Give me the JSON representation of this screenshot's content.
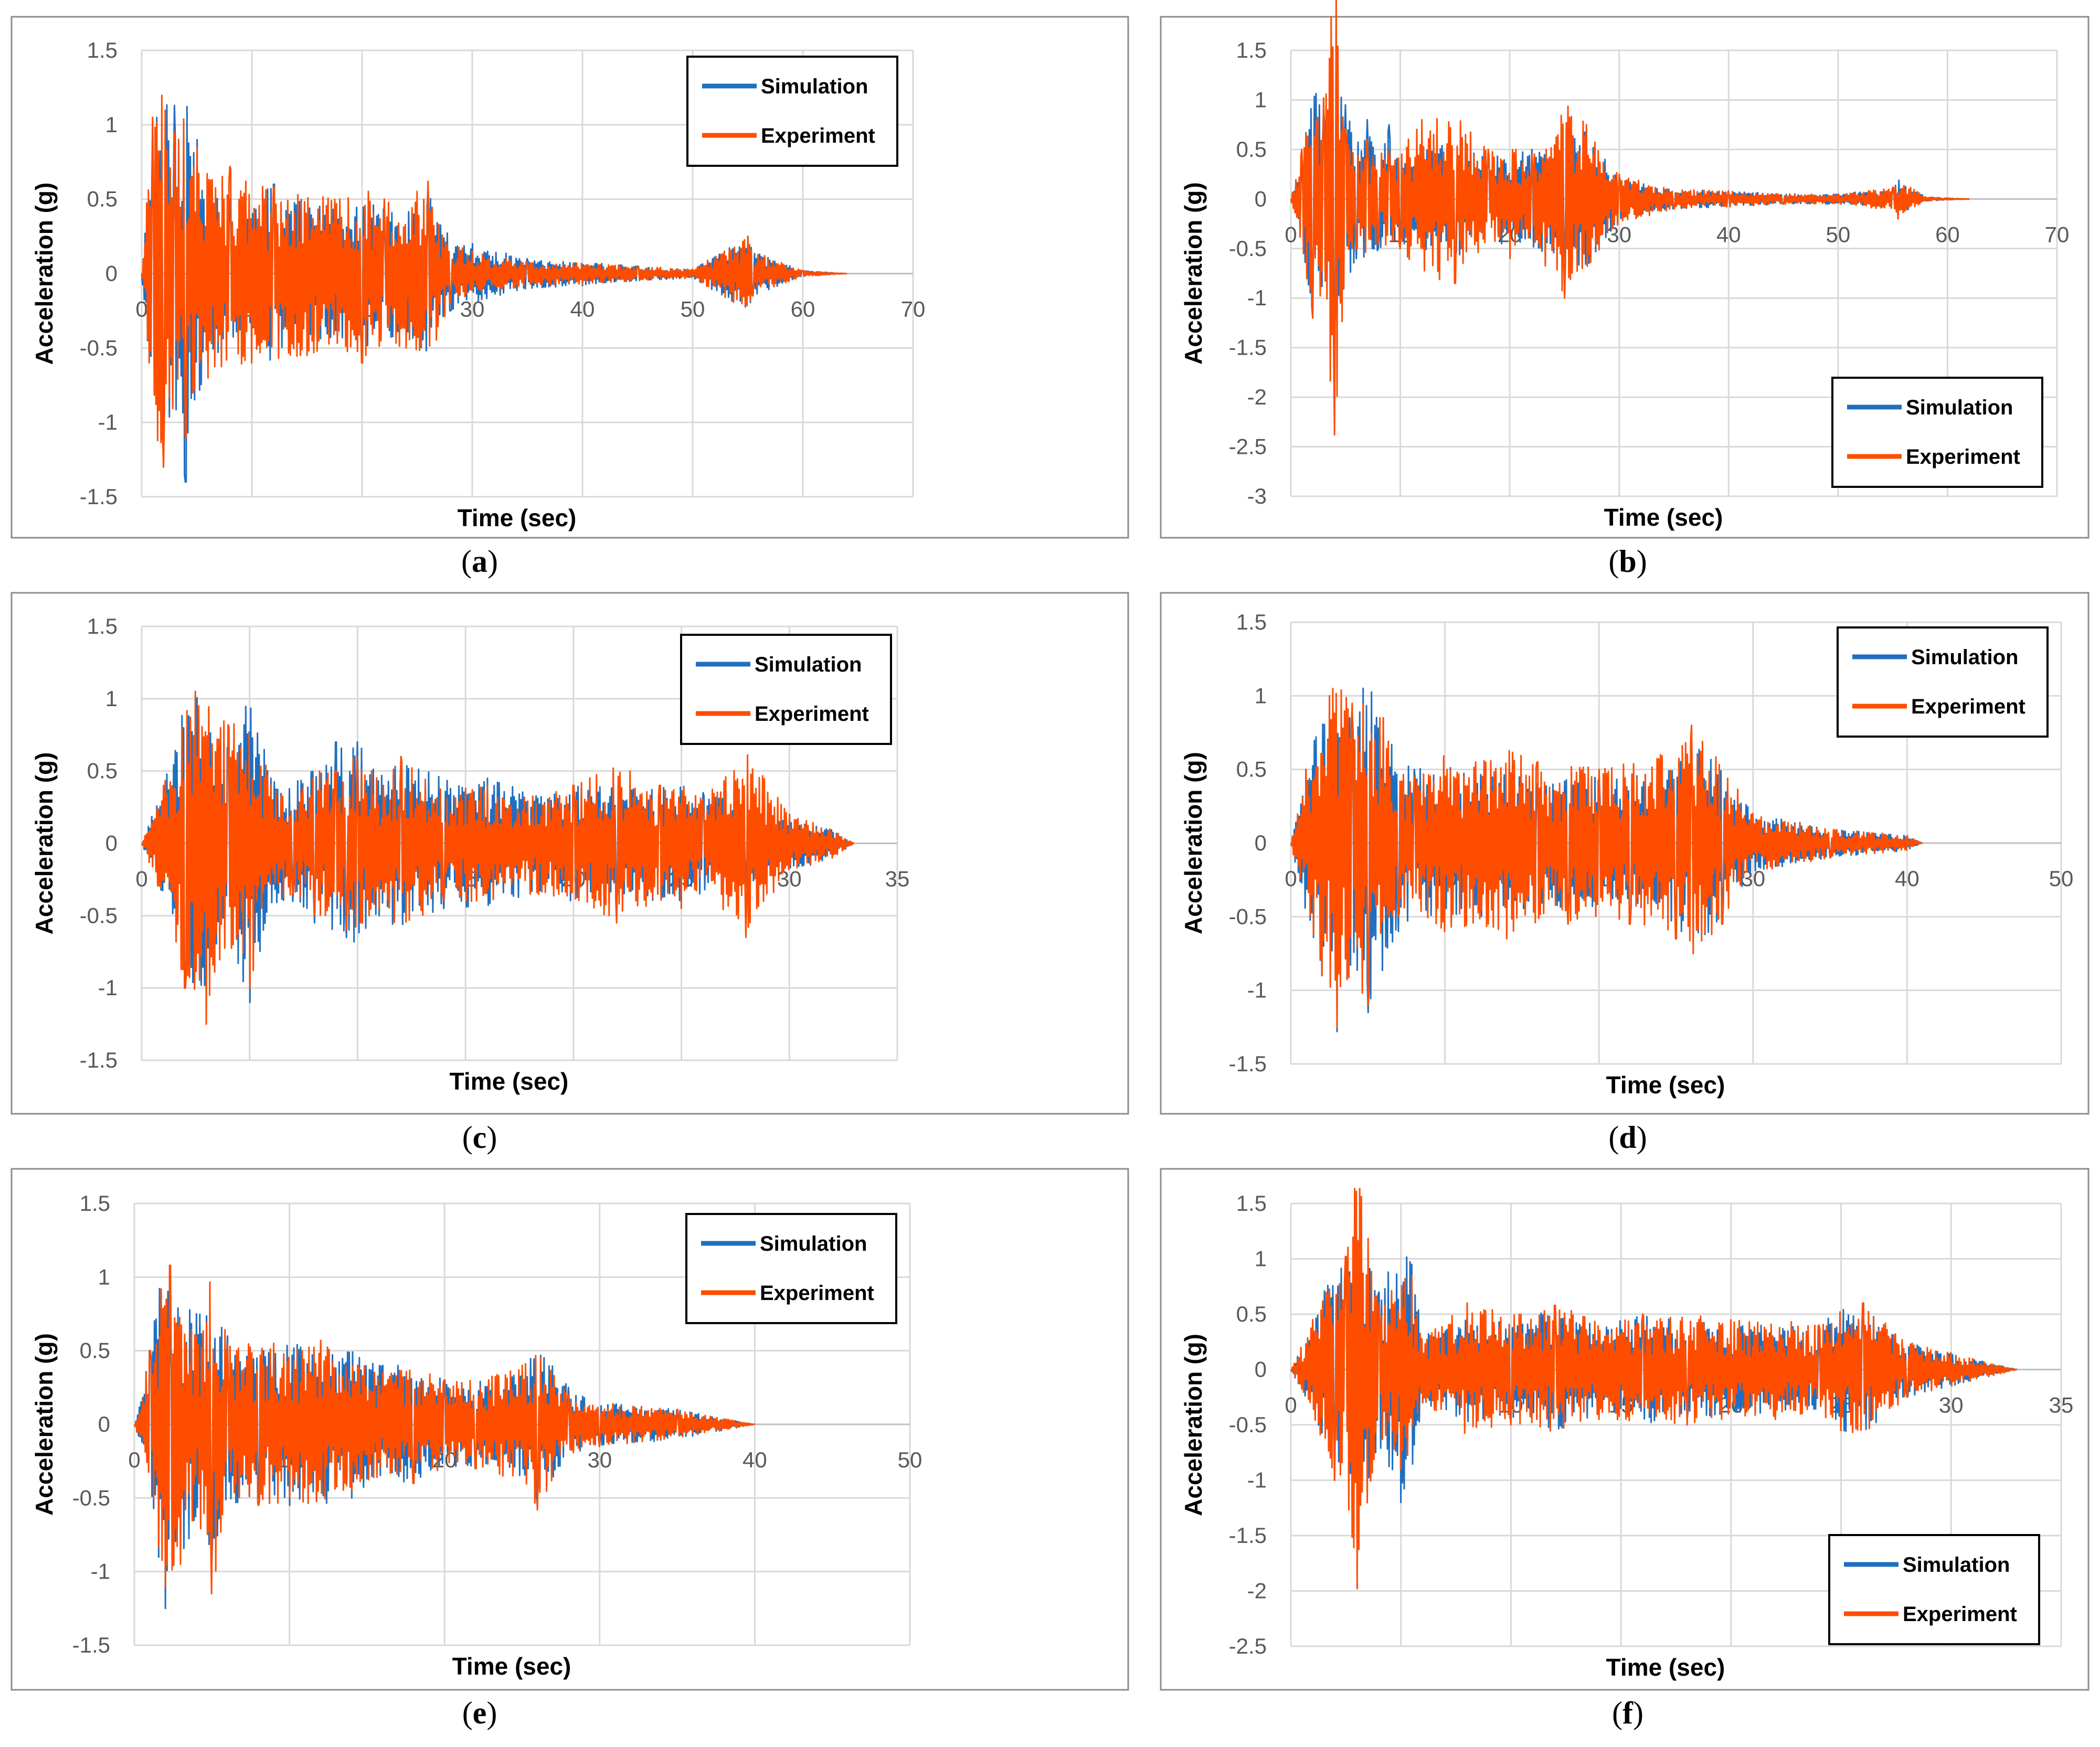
{
  "colors": {
    "simulation": "#1f6fc0",
    "experiment": "#ff4d00"
  },
  "chart_data": [
    {
      "type": "line",
      "caption": "a",
      "xlabel": "Time (sec)",
      "ylabel": "Acceleration (g)",
      "xlim": [
        0,
        70
      ],
      "ylim": [
        -1.5,
        1.5
      ],
      "xticks": [
        0,
        10,
        20,
        30,
        40,
        50,
        60,
        70
      ],
      "yticks": [
        -1.5,
        -1,
        -0.5,
        0,
        0.5,
        1,
        1.5
      ],
      "xtick_labels": [
        "0",
        "10",
        "20",
        "30",
        "40",
        "50",
        "60",
        "70"
      ],
      "ytick_labels": [
        "-1.5",
        "-1",
        "-0.5",
        "0",
        "0.5",
        "1",
        "1.5"
      ],
      "grid": true,
      "legend": "top-right",
      "series": [
        {
          "name": "Simulation",
          "x": [
            0,
            1,
            2,
            3,
            4,
            5,
            6,
            8,
            10,
            12,
            15,
            18,
            20,
            22,
            24,
            26,
            28,
            30,
            35,
            40,
            45,
            50,
            55,
            55.5,
            60,
            64
          ],
          "y": [
            0,
            1.0,
            -1.2,
            1.13,
            -1.4,
            0.9,
            -0.6,
            0.5,
            -0.55,
            0.6,
            -0.5,
            0.45,
            -0.5,
            0.45,
            -0.4,
            0.55,
            -0.25,
            0.2,
            0.1,
            -0.08,
            0.05,
            0.03,
            0.25,
            -0.15,
            0.02,
            0
          ]
        },
        {
          "name": "Experiment",
          "x": [
            0,
            1,
            2,
            3,
            4,
            5,
            6,
            8,
            10,
            12,
            15,
            18,
            20,
            22,
            24,
            26,
            28,
            30,
            35,
            40,
            45,
            50,
            55,
            55.5,
            60,
            64
          ],
          "y": [
            0,
            1.05,
            -1.3,
            0.95,
            -1.1,
            0.85,
            -0.7,
            0.72,
            -0.6,
            0.58,
            -0.55,
            0.5,
            -0.6,
            0.5,
            -0.5,
            0.62,
            -0.2,
            0.15,
            0.08,
            -0.07,
            0.05,
            0.03,
            0.25,
            -0.15,
            0.02,
            0
          ]
        }
      ]
    },
    {
      "type": "line",
      "caption": "b",
      "xlabel": "Time (sec)",
      "ylabel": "Acceleration (g)",
      "xlim": [
        0,
        70
      ],
      "ylim": [
        -3,
        1.5
      ],
      "xticks": [
        0,
        10,
        20,
        30,
        40,
        50,
        60,
        70
      ],
      "yticks": [
        -3,
        -2.5,
        -2,
        -1.5,
        -1,
        -0.5,
        0,
        0.5,
        1,
        1.5
      ],
      "xtick_labels": [
        "0",
        "10",
        "20",
        "30",
        "40",
        "50",
        "60",
        "70"
      ],
      "ytick_labels": [
        "-3",
        "-2.5",
        "-2",
        "-1.5",
        "-1",
        "-0.5",
        "0",
        "0.5",
        "1",
        "1.5"
      ],
      "grid": true,
      "legend": "bottom-right",
      "series": [
        {
          "name": "Simulation",
          "x": [
            0,
            1,
            2,
            3,
            4,
            5,
            6,
            7,
            8,
            9,
            10,
            12,
            15,
            18,
            20,
            22,
            25,
            27,
            30,
            35,
            40,
            45,
            50,
            55,
            55.5,
            58,
            62
          ],
          "y": [
            0,
            0.4,
            -1.2,
            0.9,
            -1.3,
            0.95,
            -0.6,
            0.8,
            -0.5,
            0.75,
            -0.5,
            0.5,
            -0.6,
            0.4,
            -0.5,
            0.5,
            -0.6,
            0.7,
            0.2,
            -0.1,
            0.08,
            -0.05,
            0.05,
            0.1,
            -0.2,
            0.02,
            0
          ]
        },
        {
          "name": "Experiment",
          "x": [
            0,
            1,
            2,
            3,
            4,
            5,
            6,
            7,
            8,
            9,
            10,
            12,
            15,
            18,
            20,
            22,
            25,
            27,
            30,
            35,
            40,
            45,
            50,
            55,
            55.5,
            58,
            62
          ],
          "y": [
            0,
            0.5,
            -1.2,
            1.02,
            -2.38,
            0.7,
            -0.5,
            0.6,
            -0.45,
            0.5,
            -0.5,
            0.8,
            -0.85,
            0.5,
            -0.6,
            0.45,
            -1.0,
            0.75,
            0.25,
            -0.1,
            0.08,
            -0.05,
            0.05,
            0.12,
            -0.2,
            0.02,
            0
          ]
        }
      ]
    },
    {
      "type": "line",
      "caption": "c",
      "xlabel": "Time (sec)",
      "ylabel": "Acceleration (g)",
      "xlim": [
        0,
        35
      ],
      "ylim": [
        -1.5,
        1.5
      ],
      "xticks": [
        0,
        5,
        10,
        15,
        20,
        25,
        30,
        35
      ],
      "yticks": [
        -1.5,
        -1,
        -0.5,
        0,
        0.5,
        1,
        1.5
      ],
      "xtick_labels": [
        "0",
        "5",
        "10",
        "15",
        "20",
        "25",
        "30",
        "35"
      ],
      "ytick_labels": [
        "-1.5",
        "-1",
        "-0.5",
        "0",
        "0.5",
        "1",
        "1.5"
      ],
      "grid": true,
      "legend": "top-right",
      "series": [
        {
          "name": "Simulation",
          "x": [
            0,
            1,
            2,
            2.5,
            3,
            4,
            5,
            6,
            7,
            8,
            9,
            9.5,
            10,
            11,
            12,
            14,
            16,
            18,
            20,
            22,
            24,
            25,
            26,
            28,
            30,
            32,
            33
          ],
          "y": [
            0,
            0.4,
            -1.0,
            1.02,
            -1.15,
            0.65,
            -1.1,
            0.45,
            -0.4,
            -0.55,
            0.7,
            -0.65,
            0.7,
            -0.5,
            0.6,
            -0.45,
            0.45,
            -0.35,
            0.4,
            -0.4,
            0.4,
            -0.4,
            0.35,
            -0.3,
            0.2,
            -0.1,
            0
          ]
        },
        {
          "name": "Experiment",
          "x": [
            0,
            1,
            2,
            2.5,
            3,
            4,
            5,
            6,
            7,
            8,
            9,
            9.5,
            10,
            11,
            12,
            14,
            16,
            18,
            20,
            22,
            24,
            25,
            26,
            28,
            30,
            32,
            33
          ],
          "y": [
            0,
            0.4,
            -1.0,
            1.05,
            -1.25,
            0.82,
            -1.0,
            0.4,
            -0.35,
            -0.5,
            0.5,
            -0.6,
            0.6,
            -0.45,
            0.6,
            -0.4,
            0.4,
            -0.35,
            0.4,
            -0.55,
            0.4,
            -0.45,
            0.3,
            -0.65,
            0.2,
            -0.1,
            0
          ]
        }
      ]
    },
    {
      "type": "line",
      "caption": "d",
      "xlabel": "Time (sec)",
      "ylabel": "Acceleration (g)",
      "xlim": [
        0,
        50
      ],
      "ylim": [
        -1.5,
        1.5
      ],
      "xticks": [
        0,
        10,
        20,
        30,
        40,
        50
      ],
      "yticks": [
        -1.5,
        -1,
        -0.5,
        0,
        0.5,
        1,
        1.5
      ],
      "xtick_labels": [
        "0",
        "10",
        "20",
        "30",
        "40",
        "50"
      ],
      "ytick_labels": [
        "-1.5",
        "-1",
        "-0.5",
        "0",
        "0.5",
        "1",
        "1.5"
      ],
      "grid": true,
      "legend": "top-right",
      "series": [
        {
          "name": "Simulation",
          "x": [
            0,
            1,
            2,
            2.5,
            3,
            4,
            5,
            6,
            7,
            8,
            10,
            12,
            14,
            16,
            18,
            20,
            22,
            24,
            25,
            26,
            28,
            30,
            35,
            40,
            41
          ],
          "y": [
            0,
            0.5,
            -0.9,
            0.85,
            -1.28,
            0.9,
            -1.15,
            0.85,
            -0.6,
            0.5,
            -0.55,
            0.5,
            -0.5,
            0.4,
            -0.45,
            0.45,
            -0.5,
            0.45,
            -0.6,
            0.75,
            -0.5,
            0.2,
            -0.1,
            0.05,
            0
          ]
        },
        {
          "name": "Experiment",
          "x": [
            0,
            1,
            2,
            2.5,
            3,
            4,
            5,
            6,
            7,
            8,
            10,
            12,
            14,
            16,
            18,
            20,
            22,
            24,
            25,
            26,
            28,
            30,
            35,
            40,
            41
          ],
          "y": [
            0,
            0.5,
            -0.9,
            1.0,
            -1.25,
            0.95,
            -1.1,
            0.85,
            -0.5,
            0.45,
            -0.6,
            0.55,
            -0.65,
            0.55,
            -0.55,
            0.5,
            -0.55,
            0.6,
            -0.65,
            0.8,
            -0.55,
            0.2,
            -0.1,
            0.05,
            0
          ]
        }
      ]
    },
    {
      "type": "line",
      "caption": "e",
      "xlabel": "Time (sec)",
      "ylabel": "Acceleration (g)",
      "xlim": [
        0,
        50
      ],
      "ylim": [
        -1.5,
        1.5
      ],
      "xticks": [
        0,
        10,
        20,
        30,
        40,
        50
      ],
      "yticks": [
        -1.5,
        -1,
        -0.5,
        0,
        0.5,
        1,
        1.5
      ],
      "xtick_labels": [
        "0",
        "10",
        "20",
        "30",
        "40",
        "50"
      ],
      "ytick_labels": [
        "-1.5",
        "-1",
        "-0.5",
        "0",
        "0.5",
        "1",
        "1.5"
      ],
      "grid": true,
      "legend": "top-right",
      "series": [
        {
          "name": "Simulation",
          "x": [
            0,
            1,
            2,
            2.3,
            3,
            4,
            5,
            6,
            8,
            9,
            10,
            12,
            14,
            16,
            18,
            20,
            22,
            25,
            26,
            28,
            30,
            35,
            40
          ],
          "y": [
            0,
            0.5,
            -1.25,
            0.7,
            -0.9,
            0.75,
            -1.0,
            0.6,
            -0.5,
            0.5,
            -0.55,
            0.55,
            -0.5,
            0.4,
            -0.4,
            0.3,
            -0.3,
            0.35,
            -0.55,
            0.25,
            -0.15,
            0.1,
            0
          ]
        },
        {
          "name": "Experiment",
          "x": [
            0,
            1,
            2,
            2.3,
            3,
            4,
            5,
            6,
            8,
            9,
            10,
            12,
            14,
            16,
            18,
            20,
            22,
            25,
            26,
            28,
            30,
            35,
            40
          ],
          "y": [
            0,
            0.5,
            -1.1,
            1.08,
            -0.95,
            0.6,
            -1.15,
            0.55,
            -0.55,
            0.55,
            -0.5,
            0.57,
            -0.45,
            0.35,
            -0.4,
            0.3,
            -0.3,
            0.4,
            -0.58,
            0.2,
            -0.15,
            0.1,
            0
          ]
        }
      ]
    },
    {
      "type": "line",
      "caption": "f",
      "xlabel": "Time (sec)",
      "ylabel": "Acceleration (g)",
      "xlim": [
        0,
        35
      ],
      "ylim": [
        -2.5,
        1.5
      ],
      "xticks": [
        0,
        5,
        10,
        15,
        20,
        25,
        30,
        35
      ],
      "yticks": [
        -2.5,
        -2,
        -1.5,
        -1,
        -0.5,
        0,
        0.5,
        1,
        1.5
      ],
      "xtick_labels": [
        "0",
        "5",
        "10",
        "15",
        "20",
        "25",
        "30",
        "35"
      ],
      "ytick_labels": [
        "-2.5",
        "-2",
        "-1.5",
        "-1",
        "-0.5",
        "0",
        "0.5",
        "1",
        "1.5"
      ],
      "grid": true,
      "legend": "bottom-right",
      "series": [
        {
          "name": "Simulation",
          "x": [
            0,
            1,
            2,
            2.5,
            3,
            4,
            5,
            5.5,
            6,
            8,
            10,
            12,
            14,
            16,
            18,
            20,
            22,
            24,
            25,
            26,
            28,
            30,
            33
          ],
          "y": [
            0,
            0.4,
            -1.0,
            0.9,
            -1.5,
            0.7,
            -1.2,
            0.95,
            -0.3,
            0.5,
            -0.45,
            0.55,
            -0.4,
            0.5,
            -0.45,
            0.4,
            -0.4,
            0.4,
            -0.55,
            0.6,
            -0.25,
            0.15,
            0
          ]
        },
        {
          "name": "Experiment",
          "x": [
            0,
            1,
            2,
            2.5,
            3,
            4,
            5,
            5.5,
            6,
            8,
            10,
            12,
            14,
            16,
            18,
            20,
            22,
            24,
            25,
            26,
            28,
            30,
            33
          ],
          "y": [
            0,
            0.45,
            -1.0,
            1.02,
            -1.98,
            0.6,
            -0.9,
            0.85,
            -0.3,
            0.6,
            -0.5,
            0.58,
            -0.45,
            0.5,
            -0.5,
            0.45,
            -0.45,
            0.4,
            -0.55,
            0.6,
            -0.25,
            0.15,
            0
          ]
        }
      ]
    }
  ]
}
